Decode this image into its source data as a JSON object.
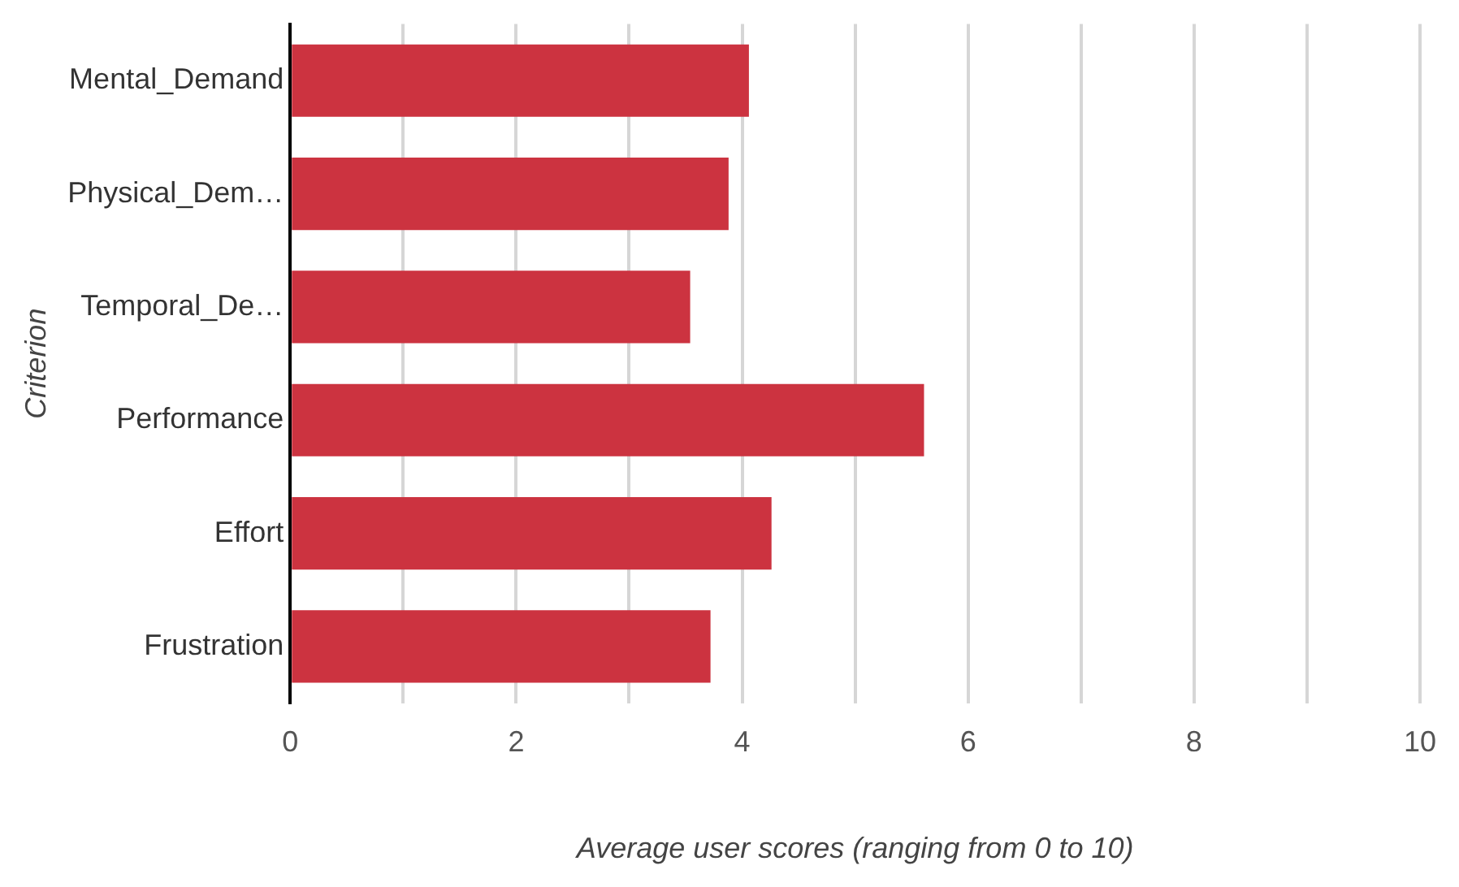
{
  "chart_data": {
    "type": "bar",
    "orientation": "horizontal",
    "xlabel": "Average user scores (ranging from 0 to 10)",
    "ylabel": "Criterion",
    "categories": [
      "Mental_Demand",
      "Physical_Dem…",
      "Temporal_De…",
      "Performance",
      "Effort",
      "Frustration"
    ],
    "values": [
      4.06,
      3.88,
      3.54,
      5.61,
      4.26,
      3.72
    ],
    "color": "#cc3340",
    "xlim": [
      0,
      10
    ],
    "xticks": [
      0,
      {
        "value": 1,
        "label": null
      },
      2,
      {
        "value": 3,
        "label": null
      },
      4,
      {
        "value": 5,
        "label": null
      },
      6,
      {
        "value": 7,
        "label": null
      },
      8,
      {
        "value": 9,
        "label": null
      },
      10
    ],
    "grid": "x",
    "legend": false
  }
}
